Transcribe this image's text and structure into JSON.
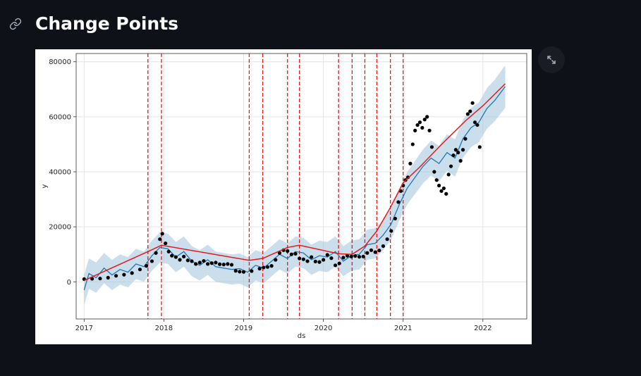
{
  "header": {
    "title": "Change Points",
    "link_icon": "link-icon"
  },
  "toolbar": {
    "expand_icon": "fullscreen-expand-icon"
  },
  "colors": {
    "background": "#0e1117",
    "forecast": "#1f77b4",
    "band": "#a6c8e0",
    "trend": "#e31a1c",
    "observed": "#000000"
  },
  "chart_data": {
    "type": "line",
    "xlabel": "ds",
    "ylabel": "y",
    "xlim": [
      2016.9,
      2022.55
    ],
    "ylim": [
      -13500,
      83000
    ],
    "x_ticks": [
      "2017",
      "2018",
      "2019",
      "2020",
      "2021",
      "2022"
    ],
    "y_ticks": [
      "0",
      "20000",
      "40000",
      "60000",
      "80000"
    ],
    "grid": true,
    "changepoints": [
      2017.8,
      2017.97,
      2019.07,
      2019.24,
      2019.55,
      2019.7,
      2020.19,
      2020.36,
      2020.52,
      2020.67,
      2020.84,
      2021.0
    ],
    "series": [
      {
        "kind": "trend",
        "x": [
          2017.0,
          2017.8,
          2017.97,
          2019.07,
          2019.24,
          2019.55,
          2019.7,
          2020.19,
          2020.36,
          2020.52,
          2020.67,
          2020.84,
          2021.0,
          2021.2,
          2021.5,
          2021.8,
          2022.0,
          2022.28
        ],
        "y": [
          500,
          11000,
          13300,
          7800,
          8500,
          12500,
          13300,
          10200,
          10000,
          13000,
          18500,
          27000,
          36000,
          41500,
          50500,
          59000,
          64000,
          72000
        ]
      },
      {
        "kind": "forecast",
        "x": [
          2017.0,
          2017.06,
          2017.15,
          2017.25,
          2017.35,
          2017.45,
          2017.55,
          2017.65,
          2017.75,
          2017.85,
          2017.95,
          2018.05,
          2018.15,
          2018.25,
          2018.35,
          2018.45,
          2018.55,
          2018.65,
          2018.75,
          2018.85,
          2018.95,
          2019.05,
          2019.15,
          2019.25,
          2019.35,
          2019.45,
          2019.55,
          2019.65,
          2019.75,
          2019.85,
          2019.95,
          2020.05,
          2020.15,
          2020.25,
          2020.35,
          2020.45,
          2020.55,
          2020.65,
          2020.75,
          2020.85,
          2020.95,
          2021.05,
          2021.15,
          2021.25,
          2021.35,
          2021.45,
          2021.55,
          2021.65,
          2021.75,
          2021.85,
          2021.95,
          2022.05,
          2022.15,
          2022.28
        ],
        "y": [
          -3000,
          3000,
          1500,
          5000,
          2500,
          4500,
          3500,
          6500,
          5500,
          9500,
          12500,
          12000,
          9000,
          11000,
          7500,
          6000,
          8000,
          5500,
          5000,
          4500,
          4800,
          3500,
          6000,
          5000,
          7500,
          10000,
          8500,
          11000,
          10500,
          8000,
          9500,
          9000,
          11000,
          7500,
          9500,
          10000,
          13500,
          14000,
          17000,
          21000,
          28000,
          34000,
          38000,
          42000,
          45000,
          43000,
          47000,
          45000,
          52000,
          56000,
          58000,
          63000,
          66000,
          71000
        ]
      },
      {
        "kind": "observed",
        "x": [
          2017.0,
          2017.1,
          2017.2,
          2017.3,
          2017.4,
          2017.5,
          2017.6,
          2017.7,
          2017.78,
          2017.85,
          2017.9,
          2017.95,
          2017.98,
          2018.02,
          2018.06,
          2018.1,
          2018.15,
          2018.2,
          2018.25,
          2018.3,
          2018.35,
          2018.4,
          2018.45,
          2018.5,
          2018.55,
          2018.6,
          2018.65,
          2018.7,
          2018.75,
          2018.8,
          2018.85,
          2018.9,
          2018.95,
          2019.0,
          2019.1,
          2019.2,
          2019.25,
          2019.3,
          2019.35,
          2019.4,
          2019.45,
          2019.5,
          2019.55,
          2019.6,
          2019.65,
          2019.7,
          2019.75,
          2019.8,
          2019.85,
          2019.9,
          2019.95,
          2020.0,
          2020.05,
          2020.1,
          2020.15,
          2020.2,
          2020.25,
          2020.3,
          2020.35,
          2020.4,
          2020.45,
          2020.5,
          2020.55,
          2020.6,
          2020.65,
          2020.7,
          2020.75,
          2020.8,
          2020.85,
          2020.9,
          2020.94,
          2020.97,
          2021.0,
          2021.03,
          2021.06,
          2021.09,
          2021.12,
          2021.15,
          2021.18,
          2021.21,
          2021.24,
          2021.27,
          2021.3,
          2021.33,
          2021.36,
          2021.39,
          2021.42,
          2021.45,
          2021.48,
          2021.51,
          2021.54,
          2021.57,
          2021.6,
          2021.63,
          2021.66,
          2021.69,
          2021.72,
          2021.75,
          2021.78,
          2021.81,
          2021.84,
          2021.87,
          2021.9,
          2021.93,
          2021.96
        ],
        "y": [
          1000,
          1100,
          1200,
          1500,
          2200,
          2600,
          3200,
          4500,
          5800,
          7500,
          10500,
          15500,
          17500,
          14000,
          11000,
          9500,
          9000,
          8000,
          9200,
          7800,
          7500,
          6500,
          7000,
          7600,
          6500,
          6800,
          7000,
          6400,
          6300,
          6500,
          6200,
          4000,
          3700,
          3600,
          3900,
          4800,
          5200,
          5400,
          5800,
          8000,
          10500,
          11500,
          11200,
          10000,
          10200,
          8500,
          8200,
          7500,
          9000,
          7400,
          7200,
          8000,
          9800,
          8600,
          6000,
          6700,
          8800,
          9500,
          9200,
          9400,
          9100,
          9200,
          10500,
          11500,
          10800,
          11400,
          13000,
          15500,
          18500,
          23000,
          29000,
          33000,
          35000,
          37000,
          38000,
          43000,
          50000,
          55000,
          57000,
          58000,
          56000,
          59000,
          60000,
          55000,
          49000,
          40000,
          37000,
          35000,
          33000,
          34000,
          32000,
          39000,
          42000,
          46000,
          48000,
          47000,
          44000,
          48000,
          52000,
          61000,
          62000,
          65000,
          58000,
          57000,
          49000
        ]
      }
    ]
  }
}
